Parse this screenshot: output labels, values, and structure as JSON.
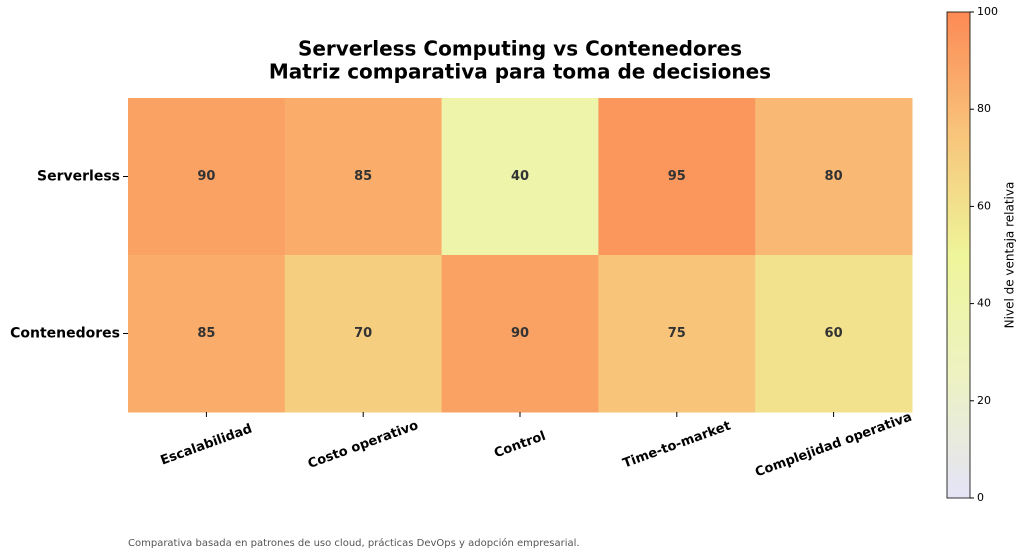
{
  "chart_data": {
    "type": "heatmap",
    "title": "Serverless Computing vs Contenedores",
    "subtitle": "Matriz comparativa para toma de decisiones",
    "x_categories": [
      "Escalabilidad",
      "Costo operativo",
      "Control",
      "Time-to-market",
      "Complejidad operativa"
    ],
    "y_categories": [
      "Serverless",
      "Contenedores"
    ],
    "values": [
      [
        90,
        85,
        40,
        95,
        80
      ],
      [
        85,
        70,
        90,
        75,
        60
      ]
    ],
    "colormap": [
      "#e4e4f7",
      "#edf2c2",
      "#eef59a",
      "#f8c47a",
      "#fc8a55"
    ],
    "clim": [
      0,
      100
    ],
    "cticks": [
      0,
      20,
      40,
      60,
      80,
      100
    ],
    "colorbar_label": "Nivel de ventaja relativa"
  },
  "footnote": "Comparativa basada en patrones de uso cloud, prácticas DevOps y adopción empresarial."
}
